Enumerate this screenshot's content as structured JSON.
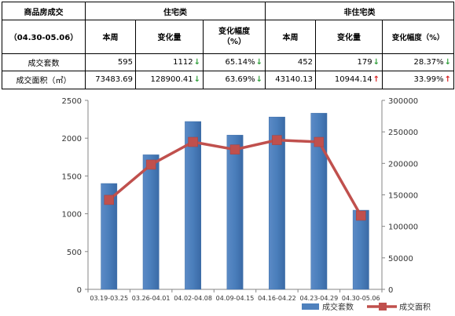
{
  "table": {
    "header": {
      "title": "商品房成交",
      "period": "（04.30-05.06）",
      "residential": "住宅类",
      "non_residential": "非住宅类",
      "this_week": "本周",
      "change": "变化量",
      "change_pct_line1": "变化幅度",
      "change_pct_line2": "（%）",
      "change_pct_inline": "变化幅度（%）"
    },
    "rows": [
      {
        "label": "成交套数",
        "res_week": "595",
        "res_change": "1112",
        "res_change_dir": "down",
        "res_pct": "65.14%",
        "res_pct_dir": "down",
        "non_week": "452",
        "non_change": "179",
        "non_change_dir": "down",
        "non_pct": "28.37%",
        "non_pct_dir": "down"
      },
      {
        "label": "成交面积（㎡）",
        "res_week": "73483.69",
        "res_change": "128900.41",
        "res_change_dir": "down",
        "res_pct": "63.69%",
        "res_pct_dir": "down",
        "non_week": "43140.13",
        "non_change": "10944.14",
        "non_change_dir": "up",
        "non_pct": "33.99%",
        "non_pct_dir": "up"
      }
    ],
    "arrows": {
      "up": "↑",
      "down": "↓"
    },
    "colors": {
      "up": "#d81e1e",
      "down": "#2f9e3a"
    }
  },
  "chart_data": {
    "type": "bar",
    "categories": [
      "03.19-03.25",
      "03.26-04.01",
      "04.02-04.08",
      "04.09-04.15",
      "04.16-04.22",
      "04.23-04.29",
      "04.30-05.06"
    ],
    "series": [
      {
        "name": "成交套数",
        "type": "bar",
        "axis": "left",
        "color": "#4f81bd",
        "values": [
          1400,
          1780,
          2220,
          2040,
          2280,
          2330,
          1047
        ]
      },
      {
        "name": "成交面积",
        "type": "line",
        "axis": "right",
        "color": "#c0504d",
        "values": [
          142000,
          198000,
          234000,
          222000,
          237000,
          234000,
          117000
        ]
      }
    ],
    "ylim_left": [
      0,
      2500
    ],
    "yticks_left": [
      0,
      500,
      1000,
      1500,
      2000,
      2500
    ],
    "ylim_right": [
      0,
      300000
    ],
    "yticks_right": [
      0,
      50000,
      100000,
      150000,
      200000,
      250000,
      300000
    ],
    "grid": false,
    "legend_position": "bottom-right"
  }
}
